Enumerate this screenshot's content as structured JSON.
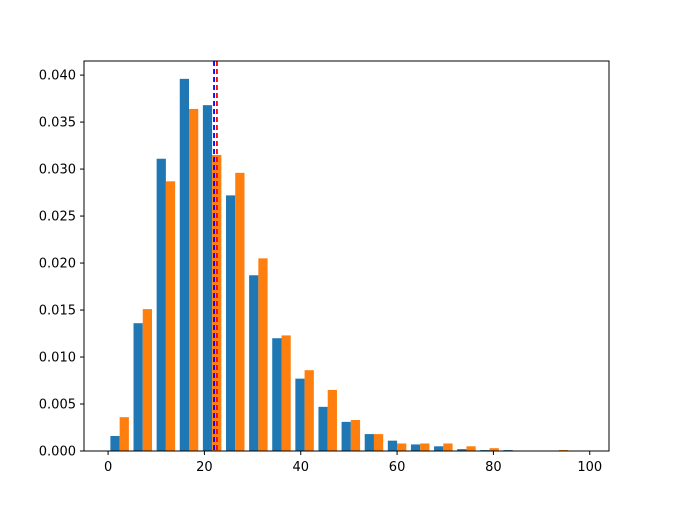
{
  "chart_data": {
    "type": "bar",
    "title": "",
    "xlabel": "",
    "ylabel": "",
    "xlim": [
      -5,
      104
    ],
    "ylim": [
      0,
      0.0415
    ],
    "x_ticks": [
      0,
      20,
      40,
      60,
      80,
      100
    ],
    "x_tick_labels": [
      "0",
      "20",
      "40",
      "60",
      "80",
      "100"
    ],
    "y_ticks": [
      0,
      0.005,
      0.01,
      0.015,
      0.02,
      0.025,
      0.03,
      0.035,
      0.04
    ],
    "y_tick_labels": [
      "0.000",
      "0.005",
      "0.010",
      "0.015",
      "0.020",
      "0.025",
      "0.030",
      "0.035",
      "0.040"
    ],
    "grid": false,
    "bin_edges": [
      0,
      4.8,
      9.6,
      14.4,
      19.2,
      24,
      28.8,
      33.6,
      38.4,
      43.2,
      48,
      52.8,
      57.6,
      62.4,
      67.2,
      72,
      76.8,
      81.6,
      86.4,
      91.2,
      96
    ],
    "series": [
      {
        "color": "#1f77b4",
        "values": [
          0.0016,
          0.0136,
          0.0311,
          0.0396,
          0.0368,
          0.0272,
          0.0187,
          0.012,
          0.0077,
          0.0047,
          0.0031,
          0.0018,
          0.0011,
          0.0007,
          0.0005,
          0.0002,
          0.0001,
          0.0001,
          0.0,
          0.0
        ]
      },
      {
        "color": "#ff7f0e",
        "values": [
          0.0036,
          0.0151,
          0.0287,
          0.0364,
          0.0315,
          0.0296,
          0.0205,
          0.0123,
          0.0086,
          0.0065,
          0.0033,
          0.0018,
          0.0008,
          0.0008,
          0.0008,
          0.0005,
          0.0003,
          0.0,
          0.0,
          0.0001
        ]
      }
    ],
    "vlines": [
      {
        "x": 22.0,
        "color": "#0000ff",
        "style": "dashed"
      },
      {
        "x": 22.6,
        "color": "#ff0000",
        "style": "dashed"
      }
    ]
  }
}
